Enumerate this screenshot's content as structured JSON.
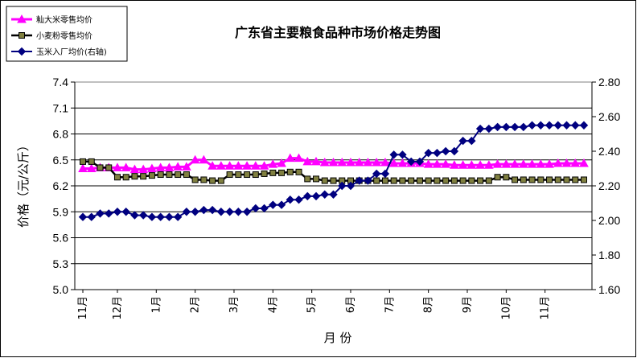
{
  "chart_data": {
    "type": "line",
    "title": "广东省主要粮食品种市场价格走势图",
    "xlabel": "月 份",
    "ylabel": "价格（元/公斤）",
    "ylim": [
      5.0,
      7.4
    ],
    "ylim_right": [
      1.6,
      2.8
    ],
    "yticks": [
      "5.0",
      "5.3",
      "5.6",
      "5.9",
      "6.2",
      "6.5",
      "6.8",
      "7.1",
      "7.4"
    ],
    "yticks_right": [
      "1.60",
      "1.80",
      "2.00",
      "2.20",
      "2.40",
      "2.60",
      "2.80"
    ],
    "grid": "horizontal",
    "legend_position": "top-left",
    "colors": {
      "rice": "#ff00ff",
      "wheat": "#000000",
      "wheat_fill": "#808040",
      "corn": "#000080",
      "grid": "#000000"
    },
    "month_labels": [
      {
        "label": "11月",
        "x": 0
      },
      {
        "label": "12月",
        "x": 4
      },
      {
        "label": "1月",
        "x": 8.5
      },
      {
        "label": "2月",
        "x": 13
      },
      {
        "label": "3月",
        "x": 17.5
      },
      {
        "label": "4月",
        "x": 22
      },
      {
        "label": "5月",
        "x": 26.5
      },
      {
        "label": "6月",
        "x": 31
      },
      {
        "label": "7月",
        "x": 35.5
      },
      {
        "label": "8月",
        "x": 40
      },
      {
        "label": "9月",
        "x": 44.5
      },
      {
        "label": "10月",
        "x": 49
      },
      {
        "label": "11月",
        "x": 53.5
      }
    ],
    "series": [
      {
        "name": "籼大米零售均价",
        "axis": "left",
        "marker": "triangle",
        "values": [
          6.4,
          6.4,
          6.41,
          6.41,
          6.41,
          6.41,
          6.39,
          6.39,
          6.4,
          6.41,
          6.41,
          6.42,
          6.42,
          6.5,
          6.5,
          6.43,
          6.43,
          6.43,
          6.43,
          6.43,
          6.43,
          6.43,
          6.45,
          6.46,
          6.52,
          6.52,
          6.48,
          6.48,
          6.47,
          6.47,
          6.47,
          6.47,
          6.47,
          6.47,
          6.47,
          6.47,
          6.46,
          6.46,
          6.46,
          6.46,
          6.45,
          6.45,
          6.45,
          6.44,
          6.44,
          6.44,
          6.44,
          6.44,
          6.45,
          6.45,
          6.45,
          6.45,
          6.45,
          6.45,
          6.45,
          6.46,
          6.46,
          6.46,
          6.46
        ]
      },
      {
        "name": "小麦粉零售均价",
        "axis": "left",
        "marker": "square",
        "values": [
          6.48,
          6.48,
          6.41,
          6.41,
          6.3,
          6.3,
          6.31,
          6.31,
          6.32,
          6.33,
          6.33,
          6.33,
          6.33,
          6.27,
          6.27,
          6.26,
          6.26,
          6.33,
          6.33,
          6.33,
          6.33,
          6.34,
          6.35,
          6.35,
          6.36,
          6.36,
          6.28,
          6.28,
          6.26,
          6.26,
          6.26,
          6.26,
          6.26,
          6.26,
          6.26,
          6.26,
          6.26,
          6.26,
          6.26,
          6.26,
          6.26,
          6.26,
          6.26,
          6.26,
          6.26,
          6.26,
          6.26,
          6.26,
          6.3,
          6.3,
          6.27,
          6.27,
          6.27,
          6.27,
          6.27,
          6.27,
          6.27,
          6.27,
          6.27
        ]
      },
      {
        "name": "玉米入厂均价(右轴)",
        "axis": "right",
        "marker": "diamond",
        "values": [
          2.02,
          2.02,
          2.04,
          2.04,
          2.05,
          2.05,
          2.03,
          2.03,
          2.02,
          2.02,
          2.02,
          2.02,
          2.05,
          2.05,
          2.06,
          2.06,
          2.05,
          2.05,
          2.05,
          2.05,
          2.07,
          2.07,
          2.09,
          2.09,
          2.12,
          2.12,
          2.14,
          2.14,
          2.15,
          2.15,
          2.2,
          2.2,
          2.23,
          2.23,
          2.27,
          2.27,
          2.38,
          2.38,
          2.34,
          2.34,
          2.39,
          2.39,
          2.4,
          2.4,
          2.46,
          2.46,
          2.53,
          2.53,
          2.54,
          2.54,
          2.54,
          2.54,
          2.55,
          2.55,
          2.55,
          2.55,
          2.55,
          2.55,
          2.55
        ]
      }
    ]
  }
}
